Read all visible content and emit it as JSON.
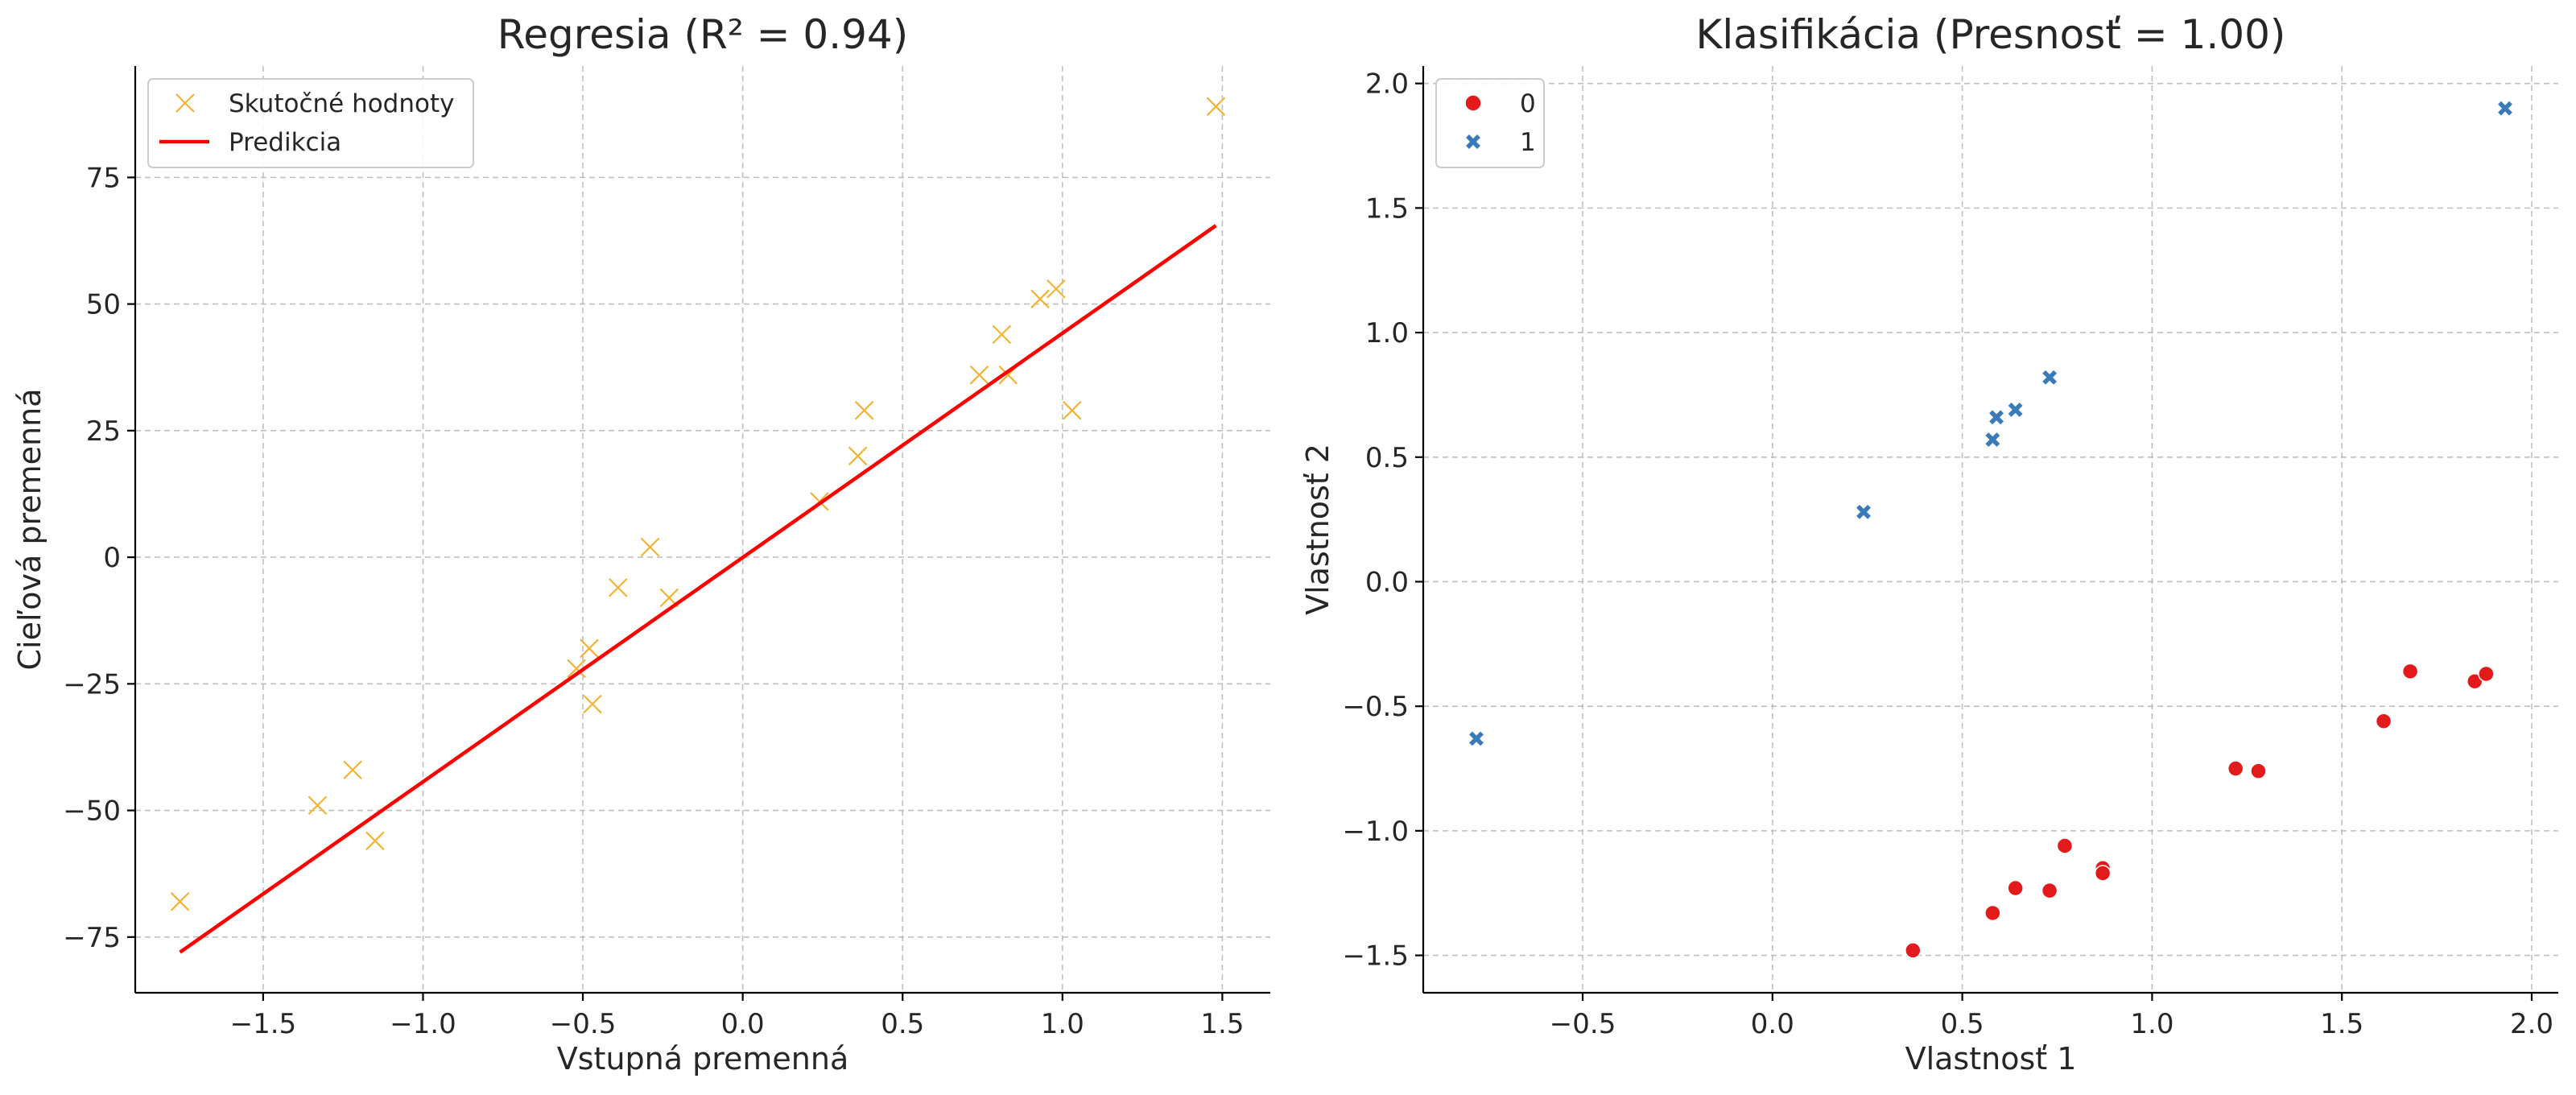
{
  "chart_data": [
    {
      "type": "scatter",
      "title": "Regresia (R² = 0.94)",
      "xlabel": "Vstupná premenná",
      "ylabel": "Cieľová premenná",
      "xlim": [
        -1.9,
        1.65
      ],
      "ylim": [
        -86,
        97
      ],
      "xticks": [
        -1.5,
        -1.0,
        -0.5,
        0.0,
        0.5,
        1.0,
        1.5
      ],
      "xtick_labels": [
        "−1.5",
        "−1.0",
        "−0.5",
        "0.0",
        "0.5",
        "1.0",
        "1.5"
      ],
      "yticks": [
        -75,
        -50,
        -25,
        0,
        25,
        50,
        75
      ],
      "ytick_labels": [
        "−75",
        "−50",
        "−25",
        "0",
        "25",
        "50",
        "75"
      ],
      "grid": true,
      "legend_position": "upper-left",
      "series": [
        {
          "name": "Skutočné hodnoty",
          "kind": "scatter",
          "marker": "x",
          "color": "#f5b335",
          "x": [
            -1.76,
            -1.33,
            -1.22,
            -1.15,
            -0.52,
            -0.48,
            -0.47,
            -0.39,
            -0.29,
            -0.23,
            0.24,
            0.36,
            0.38,
            0.74,
            0.81,
            0.83,
            0.93,
            0.98,
            1.03,
            1.48
          ],
          "y": [
            -68,
            -49,
            -42,
            -56,
            -22,
            -18,
            -29,
            -6,
            2,
            -8,
            11,
            20,
            29,
            36,
            44,
            36,
            51,
            53,
            29,
            89
          ]
        },
        {
          "name": "Predikcia",
          "kind": "line",
          "color": "#ff0000",
          "x": [
            -1.76,
            1.48
          ],
          "y": [
            -78,
            65.5
          ]
        }
      ]
    },
    {
      "type": "scatter",
      "title": "Klasifikácia (Presnosť = 1.00)",
      "xlabel": "Vlastnosť 1",
      "ylabel": "Vlastnosť 2",
      "xlim": [
        -0.92,
        2.07
      ],
      "ylim": [
        -1.65,
        2.07
      ],
      "xticks": [
        -0.5,
        0.0,
        0.5,
        1.0,
        1.5,
        2.0
      ],
      "xtick_labels": [
        "−0.5",
        "0.0",
        "0.5",
        "1.0",
        "1.5",
        "2.0"
      ],
      "yticks": [
        -1.5,
        -1.0,
        -0.5,
        0.0,
        0.5,
        1.0,
        1.5,
        2.0
      ],
      "ytick_labels": [
        "−1.5",
        "−1.0",
        "−0.5",
        "0.0",
        "0.5",
        "1.0",
        "1.5",
        "2.0"
      ],
      "grid": true,
      "legend_position": "upper-left",
      "series": [
        {
          "name": "0",
          "kind": "scatter",
          "marker": "circle",
          "color": "#e31a1c",
          "x": [
            0.37,
            0.58,
            0.64,
            0.73,
            0.77,
            0.87,
            0.87,
            1.22,
            1.28,
            1.61,
            1.68,
            1.85,
            1.88
          ],
          "y": [
            -1.48,
            -1.33,
            -1.23,
            -1.24,
            -1.06,
            -1.15,
            -1.17,
            -0.75,
            -0.76,
            -0.56,
            -0.36,
            -0.4,
            -0.37
          ]
        },
        {
          "name": "1",
          "kind": "scatter",
          "marker": "cross",
          "color": "#3a7ab8",
          "x": [
            -0.78,
            0.24,
            0.58,
            0.59,
            0.64,
            0.73,
            1.93
          ],
          "y": [
            -0.63,
            0.28,
            0.57,
            0.66,
            0.69,
            0.82,
            1.9
          ]
        }
      ]
    }
  ]
}
